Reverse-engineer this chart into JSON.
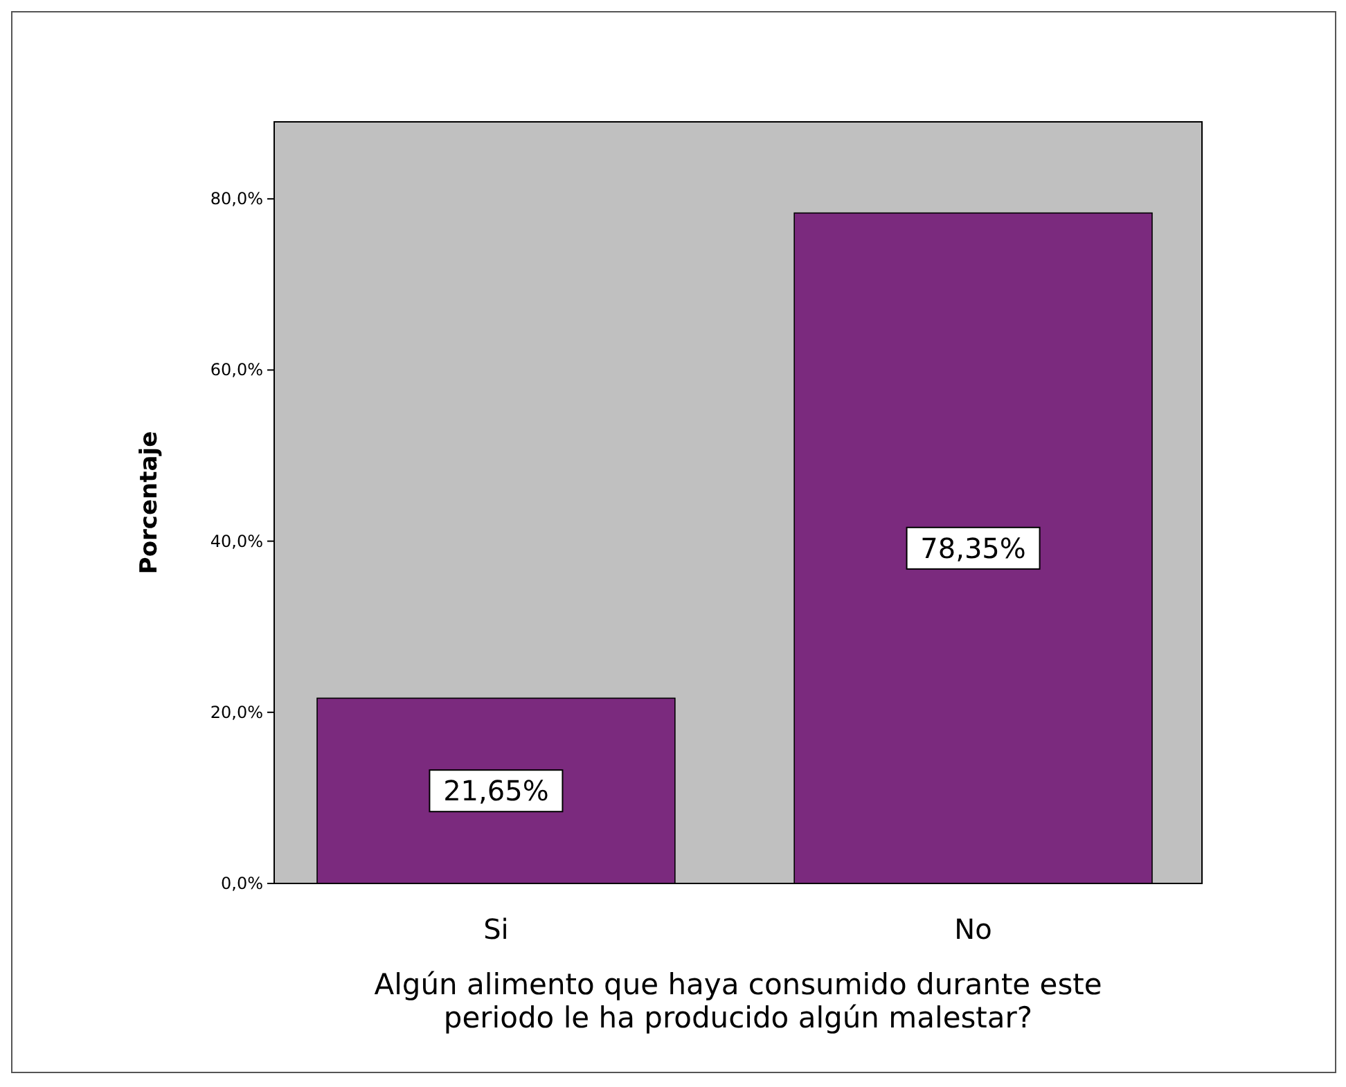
{
  "chart_data": {
    "type": "bar",
    "xlabel": "Algún alimento que haya consumido durante este periodo le ha producido algún malestar?",
    "ylabel": "Porcentaje",
    "categories": [
      "Si",
      "No"
    ],
    "values": [
      21.65,
      78.35
    ],
    "color": "#7b2a7e",
    "value_labels": [
      "21,65%",
      "78,35%"
    ],
    "ylim": [
      0,
      89
    ],
    "yticks": [
      {
        "value": 0,
        "label": "0,0%"
      },
      {
        "value": 20,
        "label": "20,0%"
      },
      {
        "value": 40,
        "label": "40,0%"
      },
      {
        "value": 60,
        "label": "60,0%"
      },
      {
        "value": 80,
        "label": "80,0%"
      }
    ],
    "grid": false
  }
}
